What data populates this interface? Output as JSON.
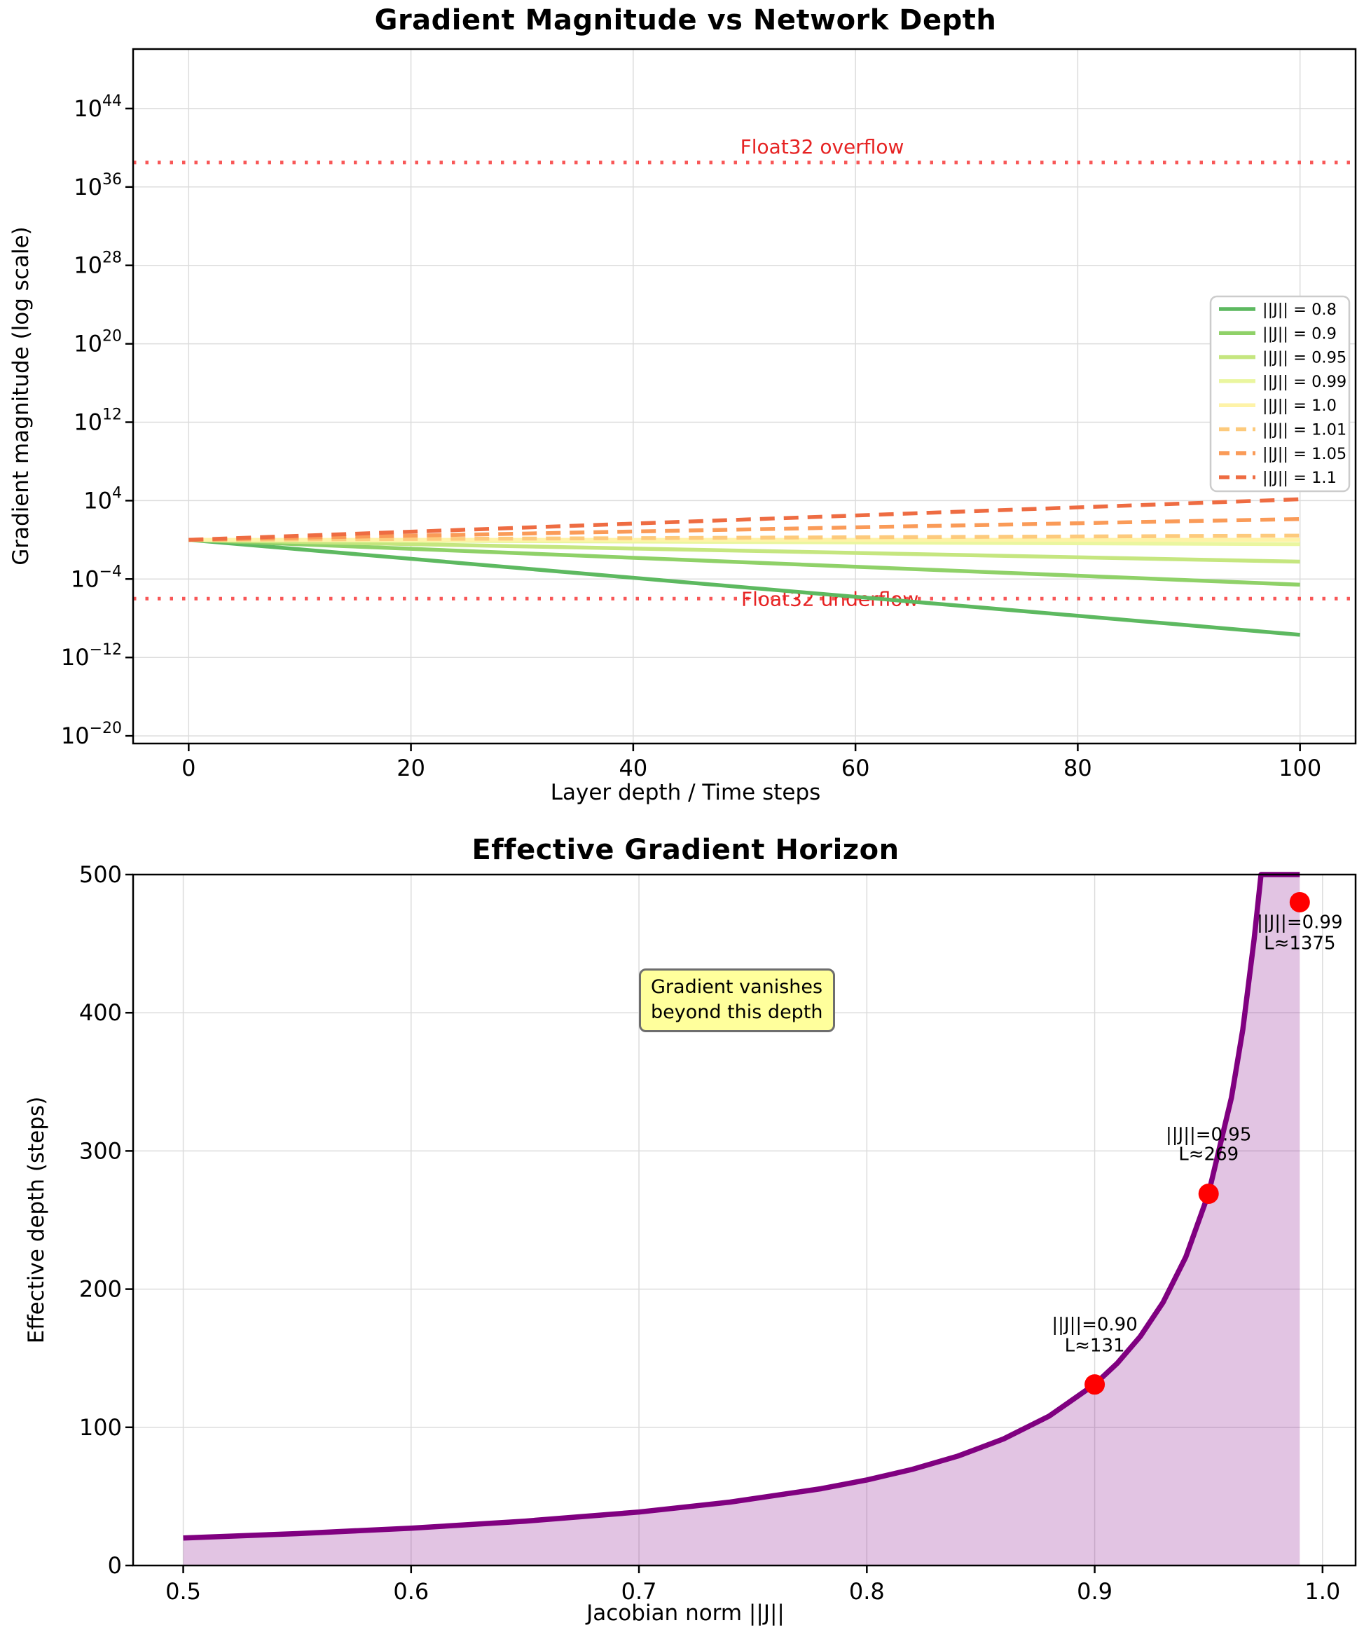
{
  "figure": {
    "background": "#ffffff",
    "grid_color": "#dcdcdc",
    "frame_color": "#000000"
  },
  "chart_data": [
    {
      "id": "gradient-magnitude-vs-depth",
      "type": "line",
      "title": "Gradient Magnitude vs Network Depth",
      "xlabel": "Layer depth / Time steps",
      "ylabel": "Gradient magnitude (log scale)",
      "x_range": [
        0,
        100
      ],
      "xlim": [
        -5,
        105
      ],
      "xticks": [
        0,
        20,
        40,
        60,
        80,
        100
      ],
      "y_scale": "log",
      "ylim_log10": [
        -20.78,
        50.07
      ],
      "ytick_exponents": [
        -20,
        -12,
        -4,
        4,
        12,
        20,
        28,
        36,
        44
      ],
      "grid": true,
      "legend_position": "right-inside",
      "series": [
        {
          "name": "||J|| = 0.8",
          "jacobian_norm": 0.8,
          "style": "solid",
          "color": "#5db960",
          "x": [
            0,
            100
          ],
          "log10_y": [
            0,
            -9.69
          ]
        },
        {
          "name": "||J|| = 0.9",
          "jacobian_norm": 0.9,
          "style": "solid",
          "color": "#8fd168",
          "x": [
            0,
            100
          ],
          "log10_y": [
            0,
            -4.58
          ]
        },
        {
          "name": "||J|| = 0.95",
          "jacobian_norm": 0.95,
          "style": "solid",
          "color": "#c5e67f",
          "x": [
            0,
            100
          ],
          "log10_y": [
            0,
            -2.23
          ]
        },
        {
          "name": "||J|| = 0.99",
          "jacobian_norm": 0.99,
          "style": "solid",
          "color": "#eaf69f",
          "x": [
            0,
            100
          ],
          "log10_y": [
            0,
            -0.44
          ]
        },
        {
          "name": "||J|| = 1.0",
          "jacobian_norm": 1.0,
          "style": "solid",
          "color": "#fef3a8",
          "x": [
            0,
            100
          ],
          "log10_y": [
            0,
            0
          ]
        },
        {
          "name": "||J|| = 1.01",
          "jacobian_norm": 1.01,
          "style": "dashed",
          "color": "#fdca7c",
          "x": [
            0,
            100
          ],
          "log10_y": [
            0,
            0.43
          ]
        },
        {
          "name": "||J|| = 1.05",
          "jacobian_norm": 1.05,
          "style": "dashed",
          "color": "#fa9b58",
          "x": [
            0,
            100
          ],
          "log10_y": [
            0,
            2.12
          ]
        },
        {
          "name": "||J|| = 1.1",
          "jacobian_norm": 1.1,
          "style": "dashed",
          "color": "#ee6c42",
          "x": [
            0,
            100
          ],
          "log10_y": [
            0,
            4.14
          ]
        }
      ],
      "reference_lines": [
        {
          "label": "Float32 overflow",
          "log10_y": 38.5,
          "line_color": "#f85757",
          "label_color": "#e62323",
          "label_x": 57,
          "label_placement": "above"
        },
        {
          "label": "Float32 underflow",
          "log10_y": -6.0,
          "line_color": "#f85757",
          "label_color": "#e62323",
          "label_x": 57.7,
          "label_placement": "on"
        }
      ]
    },
    {
      "id": "effective-gradient-horizon",
      "type": "area",
      "title": "Effective Gradient Horizon",
      "xlabel": "Jacobian norm ||J||",
      "ylabel": "Effective depth (steps)",
      "xlim": [
        0.478,
        1.0145
      ],
      "xticks": [
        0.5,
        0.6,
        0.7,
        0.8,
        0.9,
        1.0
      ],
      "ylim": [
        0,
        500
      ],
      "yticks": [
        0,
        100,
        200,
        300,
        400,
        500
      ],
      "grid": true,
      "line_color": "#800080",
      "fill_color": "rgba(135,10,140,0.24)",
      "clip_y": 500,
      "fill_right_x": 0.99,
      "curve": {
        "x": [
          0.5,
          0.55,
          0.6,
          0.65,
          0.7,
          0.74,
          0.78,
          0.8,
          0.82,
          0.84,
          0.86,
          0.88,
          0.9,
          0.91,
          0.92,
          0.93,
          0.94,
          0.95,
          0.96,
          0.965,
          0.97,
          0.973,
          0.975,
          0.98,
          0.985,
          0.99
        ],
        "y": [
          19.9,
          23.1,
          27.0,
          32.1,
          38.7,
          45.9,
          55.6,
          61.9,
          69.6,
          79.2,
          91.6,
          108.1,
          131.1,
          146.5,
          165.7,
          190.4,
          223.3,
          269.3,
          338.4,
          387.8,
          453.6,
          504.8,
          545.7,
          683.8,
          914.2,
          1374.6
        ]
      },
      "markers": [
        {
          "x": 0.9,
          "depth": 131,
          "plot_y": 131,
          "color": "#ff0000",
          "label_lines": [
            "||J||=0.90",
            "L≈131"
          ],
          "label_dy": [
            -77,
            -47
          ]
        },
        {
          "x": 0.95,
          "depth": 269,
          "plot_y": 269,
          "color": "#ff0000",
          "label_lines": [
            "||J||=0.95",
            "L≈269"
          ],
          "label_dy": [
            -76,
            -48
          ]
        },
        {
          "x": 0.99,
          "depth": 1375,
          "plot_y": 480,
          "color": "#ff0000",
          "label_lines": [
            "||J||=0.99",
            "L≈1375"
          ],
          "label_dy": [
            37,
            67
          ]
        }
      ],
      "annotation_box": {
        "lines": [
          "Gradient vanishes",
          "beyond this depth"
        ],
        "bg": "#ffff9c",
        "border": "#6e6e6e"
      }
    }
  ]
}
